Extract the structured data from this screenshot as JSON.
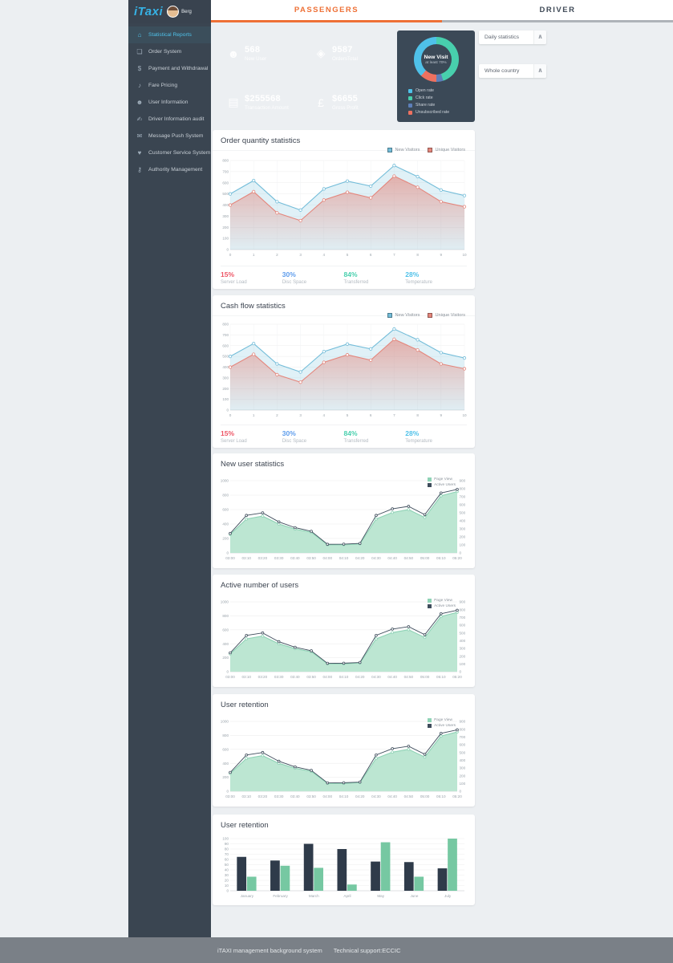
{
  "header": {
    "logo": "iTaxi",
    "user_name": "Berg",
    "tabs": [
      {
        "label": "PASSENGERS",
        "active": true
      },
      {
        "label": "DRIVER",
        "active": false
      }
    ]
  },
  "sidebar": {
    "items": [
      {
        "label": "Statistical Reports",
        "icon": "home-icon",
        "glyph": "⌂",
        "active": true
      },
      {
        "label": "Order System",
        "icon": "document-icon",
        "glyph": "❏"
      },
      {
        "label": "Payment and Withdrawal",
        "icon": "dollar-icon",
        "glyph": "$"
      },
      {
        "label": "Fare Pricing",
        "icon": "horn-icon",
        "glyph": "♪"
      },
      {
        "label": "User Information",
        "icon": "user-icon",
        "glyph": "☻"
      },
      {
        "label": "Driver Information audit",
        "icon": "audit-icon",
        "glyph": "✍"
      },
      {
        "label": "Message Push System",
        "icon": "envelope-icon",
        "glyph": "✉"
      },
      {
        "label": "Customer Service System",
        "icon": "heart-icon",
        "glyph": "♥"
      },
      {
        "label": "Authority Management",
        "icon": "lock-icon",
        "glyph": "⚷"
      }
    ]
  },
  "stat_cards": [
    {
      "value": "568",
      "label": "New User",
      "color": "#5a78b7",
      "icon": "cat-icon",
      "glyph": "☻"
    },
    {
      "value": "9587",
      "label": "OrdersTotal",
      "color": "#f1705c",
      "icon": "tag-icon",
      "glyph": "◈"
    },
    {
      "value": "$255568",
      "label": "Transaction Amount",
      "color": "#4fa6d8",
      "icon": "credit-card-icon",
      "glyph": "▤"
    },
    {
      "value": "$6655",
      "label": "Gross Profit",
      "color": "#49c8b1",
      "icon": "money-bag-icon",
      "glyph": "£"
    }
  ],
  "visit_card": {
    "title": "New Visit",
    "subtitle": "at least 70%",
    "legend": [
      {
        "label": "Open rate",
        "color": "#4fc1e9"
      },
      {
        "label": "Click rate",
        "color": "#48cfad"
      },
      {
        "label": "Share rate",
        "color": "#5d7fb9"
      },
      {
        "label": "Unsubscribed rate",
        "color": "#ed7160"
      }
    ],
    "segments": [
      {
        "label": "Click rate",
        "pct": 45,
        "color": "#48cfad"
      },
      {
        "label": "Share rate",
        "pct": 5,
        "color": "#5d7fb9"
      },
      {
        "label": "Unsubscribed rate",
        "pct": 12,
        "color": "#ed7160"
      },
      {
        "label": "Open rate",
        "pct": 38,
        "color": "#4fc1e9"
      }
    ]
  },
  "filters": {
    "chevron": "∧",
    "items": [
      {
        "label": "Daily statistics"
      },
      {
        "label": "Whole country"
      }
    ]
  },
  "footer": {
    "left": "iTAXI management background system",
    "right": "Technical support:ECCIC"
  },
  "chart_data": [
    {
      "type": "line",
      "title": "Order quantity statistics",
      "x": [
        0,
        1,
        2,
        3,
        4,
        5,
        6,
        7,
        8,
        9,
        10
      ],
      "ylim": [
        0,
        800
      ],
      "yticks": [
        0,
        100,
        200,
        300,
        400,
        500,
        600,
        700,
        800
      ],
      "series": [
        {
          "name": "New Visitors",
          "color": "#74bdd9",
          "fill": "rgba(116,189,217,0.22)",
          "values": [
            500,
            620,
            430,
            355,
            545,
            615,
            570,
            755,
            655,
            535,
            485
          ]
        },
        {
          "name": "Unique Visitors",
          "color": "#e4867c",
          "gradient": true,
          "values": [
            400,
            520,
            330,
            260,
            445,
            515,
            465,
            660,
            560,
            430,
            385
          ]
        }
      ],
      "stats": [
        {
          "value": "15%",
          "label": "Server Load",
          "color": "#ed5565"
        },
        {
          "value": "30%",
          "label": "Disc Space",
          "color": "#5d9cec"
        },
        {
          "value": "84%",
          "label": "Transferred",
          "color": "#48cfad"
        },
        {
          "value": "28%",
          "label": "Temperature",
          "color": "#4fc1e9"
        }
      ]
    },
    {
      "type": "line",
      "title": "Cash flow statistics",
      "x": [
        0,
        1,
        2,
        3,
        4,
        5,
        6,
        7,
        8,
        9,
        10
      ],
      "ylim": [
        0,
        800
      ],
      "yticks": [
        0,
        100,
        200,
        300,
        400,
        500,
        600,
        700,
        800
      ],
      "series": [
        {
          "name": "New Visitors",
          "color": "#74bdd9",
          "fill": "rgba(116,189,217,0.22)",
          "values": [
            500,
            620,
            430,
            355,
            545,
            615,
            570,
            755,
            655,
            535,
            485
          ]
        },
        {
          "name": "Unique Visitors",
          "color": "#e4867c",
          "gradient": true,
          "values": [
            400,
            520,
            330,
            260,
            445,
            515,
            465,
            660,
            560,
            430,
            385
          ]
        }
      ],
      "stats": [
        {
          "value": "15%",
          "label": "Server Load",
          "color": "#ed5565"
        },
        {
          "value": "30%",
          "label": "Disc Space",
          "color": "#5d9cec"
        },
        {
          "value": "84%",
          "label": "Transferred",
          "color": "#48cfad"
        },
        {
          "value": "28%",
          "label": "Temperature",
          "color": "#4fc1e9"
        }
      ]
    },
    {
      "type": "area",
      "title": "New user statistics",
      "categories": [
        "03:00",
        "03:10",
        "03:20",
        "03:30",
        "03:40",
        "03:50",
        "04:00",
        "04:10",
        "04:20",
        "04:30",
        "04:40",
        "04:50",
        "05:00",
        "05:10",
        "05:20"
      ],
      "ylim": [
        0,
        1000
      ],
      "yticks": [
        0,
        200,
        400,
        600,
        800,
        1000
      ],
      "right_ticks": [
        0,
        100,
        200,
        300,
        400,
        500,
        600,
        700,
        800,
        900
      ],
      "series": [
        {
          "name": "Page View",
          "color": "#8fd3b6",
          "fill": "#bce6d2",
          "values": [
            255,
            470,
            510,
            400,
            330,
            285,
            112,
            112,
            125,
            470,
            560,
            600,
            490,
            790,
            850
          ]
        },
        {
          "name": "Active Users",
          "color": "#3f4d5c",
          "width": 0.9,
          "values": [
            270,
            520,
            555,
            430,
            350,
            300,
            120,
            122,
            132,
            520,
            610,
            645,
            530,
            830,
            880
          ]
        }
      ]
    },
    {
      "type": "area",
      "title": "Active number of users",
      "categories": [
        "03:00",
        "03:10",
        "03:20",
        "03:30",
        "03:40",
        "03:50",
        "04:00",
        "04:10",
        "04:20",
        "04:30",
        "04:40",
        "04:50",
        "05:00",
        "05:10",
        "05:20"
      ],
      "ylim": [
        0,
        1000
      ],
      "yticks": [
        0,
        200,
        400,
        600,
        800,
        1000
      ],
      "right_ticks": [
        0,
        100,
        200,
        300,
        400,
        500,
        600,
        700,
        800,
        900
      ],
      "series": [
        {
          "name": "Page View",
          "color": "#8fd3b6",
          "fill": "#bce6d2",
          "values": [
            255,
            470,
            510,
            400,
            330,
            285,
            112,
            112,
            125,
            470,
            560,
            600,
            490,
            790,
            850
          ]
        },
        {
          "name": "Active Users",
          "color": "#3f4d5c",
          "width": 0.9,
          "values": [
            270,
            520,
            555,
            430,
            350,
            300,
            120,
            122,
            132,
            520,
            610,
            645,
            530,
            830,
            880
          ]
        }
      ]
    },
    {
      "type": "area",
      "title": "User retention",
      "categories": [
        "03:00",
        "03:10",
        "03:20",
        "03:30",
        "03:40",
        "03:50",
        "04:00",
        "04:10",
        "04:20",
        "04:30",
        "04:40",
        "04:50",
        "05:00",
        "05:10",
        "05:20"
      ],
      "ylim": [
        0,
        1000
      ],
      "yticks": [
        0,
        200,
        400,
        600,
        800,
        1000
      ],
      "right_ticks": [
        0,
        100,
        200,
        300,
        400,
        500,
        600,
        700,
        800,
        900
      ],
      "series": [
        {
          "name": "Page View",
          "color": "#8fd3b6",
          "fill": "#bce6d2",
          "values": [
            255,
            470,
            510,
            400,
            330,
            285,
            112,
            112,
            125,
            470,
            560,
            600,
            490,
            790,
            850
          ]
        },
        {
          "name": "Active Users",
          "color": "#3f4d5c",
          "width": 0.9,
          "values": [
            270,
            520,
            555,
            430,
            350,
            300,
            120,
            122,
            132,
            520,
            610,
            645,
            530,
            830,
            880
          ]
        }
      ]
    },
    {
      "type": "bar",
      "title": "User retention",
      "categories": [
        "January",
        "February",
        "March",
        "April",
        "May",
        "June",
        "July"
      ],
      "ylim": [
        0,
        100
      ],
      "yticks": [
        0,
        10,
        20,
        30,
        40,
        50,
        60,
        70,
        80,
        90,
        100
      ],
      "series": [
        {
          "color": "#2f3b4a",
          "values": [
            65,
            58,
            90,
            80,
            56,
            55,
            43
          ]
        },
        {
          "color": "#76c8a2",
          "values": [
            27,
            48,
            44,
            12,
            93,
            27,
            100
          ]
        }
      ]
    }
  ]
}
